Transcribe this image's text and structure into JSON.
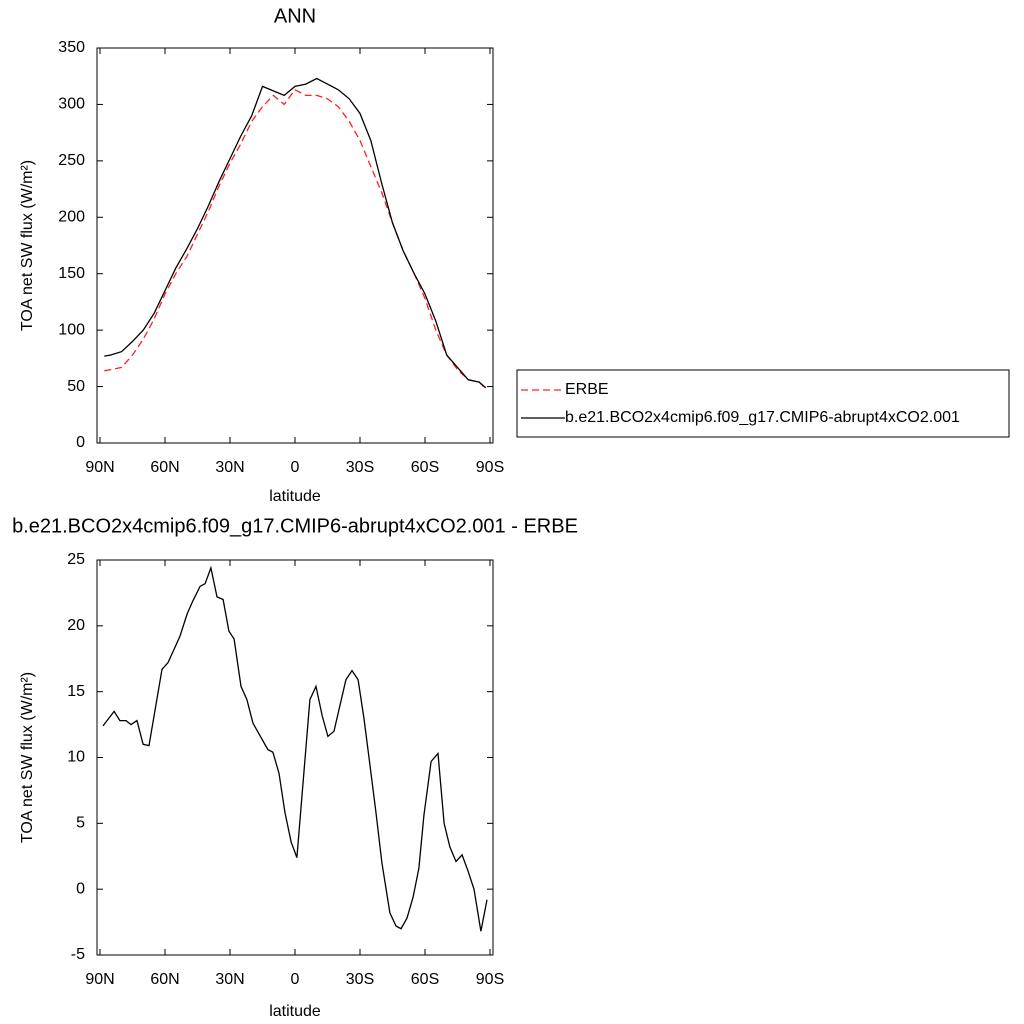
{
  "chart_data": [
    {
      "type": "line",
      "title": "ANN",
      "xlabel": "latitude",
      "ylabel": "TOA net SW flux (W/m²)",
      "xlim": [
        90,
        -90
      ],
      "ylim": [
        0,
        350
      ],
      "xticks": [
        {
          "value": 90,
          "label": "90N"
        },
        {
          "value": 60,
          "label": "60N"
        },
        {
          "value": 30,
          "label": "30N"
        },
        0,
        {
          "value": -30,
          "label": "30S"
        },
        {
          "value": -60,
          "label": "60S"
        },
        {
          "value": -90,
          "label": "90S"
        }
      ],
      "yticks": [
        0,
        50,
        100,
        150,
        200,
        250,
        300,
        350
      ],
      "legend": "right",
      "x": [
        88,
        85,
        80,
        75,
        70,
        65,
        60,
        55,
        50,
        45,
        40,
        35,
        30,
        25,
        20,
        15,
        10,
        5,
        0,
        -5,
        -10,
        -15,
        -20,
        -25,
        -30,
        -35,
        -40,
        -45,
        -50,
        -55,
        -60,
        -65,
        -70,
        -75,
        -80,
        -85,
        -88
      ],
      "series": [
        {
          "name": "ERBE",
          "color": "#ff2020",
          "linestyle": "dashed",
          "values": [
            64,
            65,
            67,
            78,
            92,
            110,
            132,
            150,
            165,
            185,
            205,
            228,
            248,
            265,
            285,
            298,
            308,
            300,
            313,
            308,
            308,
            305,
            298,
            285,
            268,
            245,
            222,
            195,
            170,
            150,
            128,
            100,
            78,
            65,
            56,
            54,
            48
          ]
        },
        {
          "name": "b.e21.BCO2x4cmip6.f09_g17.CMIP6-abrupt4xCO2.001",
          "color": "#000000",
          "linestyle": "solid",
          "values": [
            77,
            78,
            81,
            90,
            100,
            115,
            135,
            155,
            172,
            190,
            210,
            232,
            252,
            272,
            290,
            316,
            312,
            308,
            316,
            318,
            323,
            318,
            313,
            305,
            292,
            268,
            230,
            195,
            170,
            150,
            132,
            108,
            78,
            67,
            56,
            54,
            49
          ]
        }
      ]
    },
    {
      "type": "line",
      "title": "b.e21.BCO2x4cmip6.f09_g17.CMIP6-abrupt4xCO2.001 - ERBE",
      "xlabel": "latitude",
      "ylabel": "TOA net SW flux (W/m²)",
      "xlim": [
        90,
        -90
      ],
      "ylim": [
        -5,
        25
      ],
      "xticks": [
        {
          "value": 90,
          "label": "90N"
        },
        {
          "value": 60,
          "label": "60N"
        },
        {
          "value": 30,
          "label": "30N"
        },
        0,
        {
          "value": -30,
          "label": "30S"
        },
        {
          "value": -60,
          "label": "60S"
        },
        {
          "value": -90,
          "label": "90S"
        }
      ],
      "yticks": [
        -5,
        0,
        5,
        10,
        15,
        20,
        25
      ],
      "x": [
        88.6,
        83.5,
        80.8,
        78.0,
        75.7,
        72.9,
        70.1,
        67.4,
        61.4,
        58.6,
        53.1,
        49.8,
        47.1,
        43.8,
        41.5,
        38.8,
        36.0,
        33.2,
        30.5,
        28.1,
        24.9,
        22.2,
        19.4,
        12.5,
        10.2,
        7.4,
        4.6,
        1.8,
        -0.9,
        -6.9,
        -9.7,
        -12.5,
        -15.2,
        -18.0,
        -20.8,
        -23.5,
        -26.3,
        -29.1,
        -31.8,
        -34.6,
        -37.4,
        -40.1,
        -43.8,
        -46.6,
        -48.9,
        -51.7,
        -54.5,
        -57.2,
        -59.5,
        -62.8,
        -66.0,
        -68.8,
        -71.5,
        -74.3,
        -77.1,
        -79.8,
        -82.6,
        -85.8,
        -88.6
      ],
      "series": [
        {
          "color": "#000000",
          "linestyle": "solid",
          "values": [
            12.4,
            13.5,
            12.8,
            12.8,
            12.5,
            12.8,
            11.0,
            10.9,
            16.7,
            17.2,
            19.2,
            20.9,
            21.9,
            23.0,
            23.2,
            24.4,
            22.2,
            22.0,
            19.6,
            19.0,
            15.4,
            14.4,
            12.6,
            10.6,
            10.4,
            8.8,
            5.8,
            3.6,
            2.4,
            14.4,
            15.4,
            13.2,
            11.6,
            12.0,
            14.0,
            15.9,
            16.6,
            15.9,
            13.0,
            9.4,
            5.8,
            2.0,
            -1.8,
            -2.8,
            -3.0,
            -2.2,
            -0.6,
            1.6,
            5.6,
            9.7,
            10.3,
            5.0,
            3.2,
            2.1,
            2.6,
            1.4,
            0.0,
            -3.2,
            -0.8
          ]
        }
      ]
    }
  ]
}
